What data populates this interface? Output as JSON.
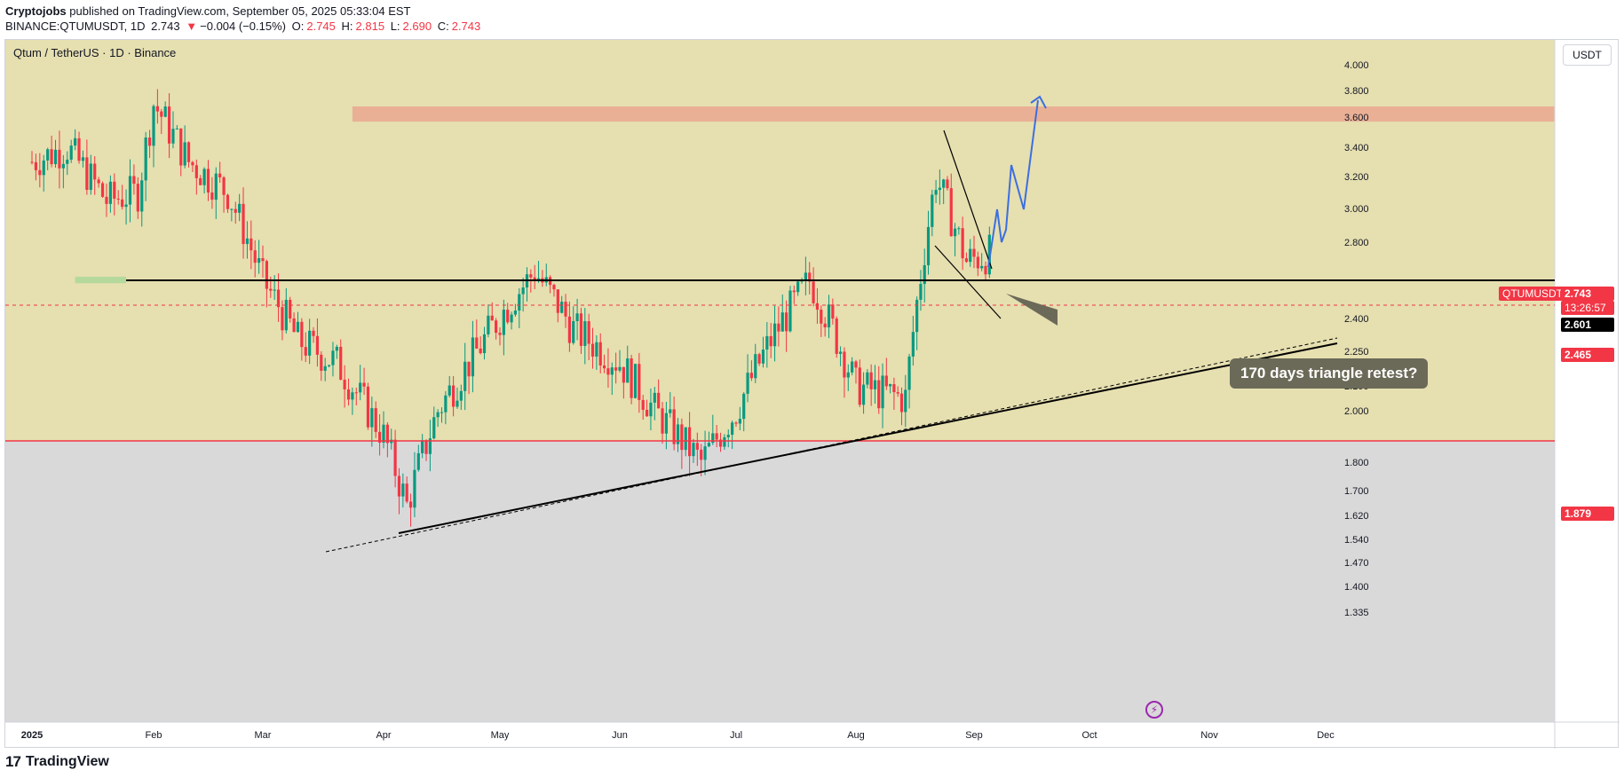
{
  "header": {
    "publisher": "Cryptojobs",
    "published_text": "published on TradingView.com, September 05, 2025 05:33:04 EST",
    "symbol": "BINANCE:QTUMUSDT, 1D",
    "last": "2.743",
    "arrow": "▼",
    "change": "−0.004 (−0.15%)",
    "o_label": "O:",
    "o_val": "2.745",
    "h_label": "H:",
    "h_val": "2.815",
    "l_label": "L:",
    "l_val": "2.690",
    "c_label": "C:",
    "c_val": "2.743"
  },
  "pane_title": "Qtum / TetherUS · 1D · Binance",
  "currency_button": "USDT",
  "tags": {
    "symbol": "QTUMUSDT",
    "price": "2.743",
    "countdown": "13:26:57",
    "black_level": "2.601",
    "red_level_1": "2.465",
    "red_level_2": "1.879"
  },
  "callout": "170 days triangle retest?",
  "brand": "TradingView",
  "colors": {
    "up": "#089981",
    "down": "#f23645",
    "zone_yellow": "#e6dfb0",
    "zone_gray": "#d9d9d9",
    "resistance_zone": "#eab095",
    "support_green": "#b5d99c",
    "forecast": "#3c6fe0"
  },
  "chart_data": {
    "type": "candlestick",
    "title": "Qtum / TetherUS · 1D · Binance",
    "y_ticks": [
      "4.000",
      "3.800",
      "3.600",
      "3.400",
      "3.200",
      "3.000",
      "2.800",
      "2.400",
      "2.250",
      "2.100",
      "2.000",
      "1.800",
      "1.700",
      "1.620",
      "1.540",
      "1.470",
      "1.400",
      "1.335"
    ],
    "x_ticks": [
      "2025",
      "Feb",
      "Mar",
      "Apr",
      "May",
      "Jun",
      "Jul",
      "Aug",
      "Sep",
      "Oct",
      "Nov",
      "Dec"
    ],
    "levels": {
      "support_black": 2.601,
      "dashed_red": 2.465,
      "solid_red": 1.879
    },
    "resistance_zone": [
      3.57,
      3.68
    ],
    "last_price": 2.743,
    "approx_closes": [
      {
        "x": "2025-01-01",
        "y": 3.3
      },
      {
        "x": "2025-01-10",
        "y": 3.4
      },
      {
        "x": "2025-01-20",
        "y": 3.05
      },
      {
        "x": "2025-01-28",
        "y": 3.1
      },
      {
        "x": "2025-02-01",
        "y": 3.7
      },
      {
        "x": "2025-02-10",
        "y": 3.3
      },
      {
        "x": "2025-02-20",
        "y": 3.1
      },
      {
        "x": "2025-03-01",
        "y": 2.6
      },
      {
        "x": "2025-03-10",
        "y": 2.3
      },
      {
        "x": "2025-03-20",
        "y": 2.2
      },
      {
        "x": "2025-04-01",
        "y": 1.9
      },
      {
        "x": "2025-04-07",
        "y": 1.65
      },
      {
        "x": "2025-04-15",
        "y": 2.0
      },
      {
        "x": "2025-04-25",
        "y": 2.25
      },
      {
        "x": "2025-05-10",
        "y": 2.65
      },
      {
        "x": "2025-05-20",
        "y": 2.35
      },
      {
        "x": "2025-06-01",
        "y": 2.2
      },
      {
        "x": "2025-06-10",
        "y": 2.0
      },
      {
        "x": "2025-06-22",
        "y": 1.8
      },
      {
        "x": "2025-07-01",
        "y": 2.0
      },
      {
        "x": "2025-07-10",
        "y": 2.3
      },
      {
        "x": "2025-07-20",
        "y": 2.6
      },
      {
        "x": "2025-08-01",
        "y": 2.1
      },
      {
        "x": "2025-08-14",
        "y": 2.05
      },
      {
        "x": "2025-08-22",
        "y": 3.2
      },
      {
        "x": "2025-08-30",
        "y": 2.7
      },
      {
        "x": "2025-09-05",
        "y": 2.743
      }
    ]
  }
}
